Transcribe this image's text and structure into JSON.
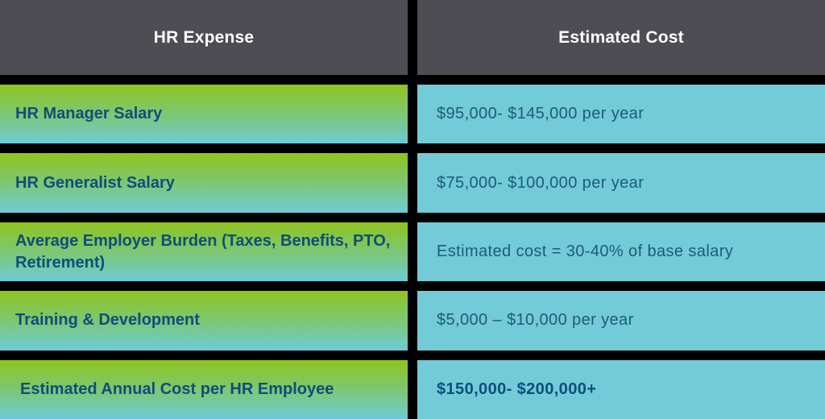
{
  "chart_data": {
    "type": "table",
    "title": "",
    "columns": [
      {
        "label": "HR Expense"
      },
      {
        "label": "Estimated Cost"
      }
    ],
    "rows": [
      {
        "expense": "HR Manager Salary",
        "cost": "$95,000- $145,000 per year",
        "emphasis": false
      },
      {
        "expense": "HR Generalist Salary",
        "cost": "$75,000- $100,000 per year",
        "emphasis": false
      },
      {
        "expense": "Average Employer Burden (Taxes, Benefits, PTO, Retirement)",
        "cost": "Estimated cost = 30-40% of base salary",
        "emphasis": false
      },
      {
        "expense": "Training & Development",
        "cost": "$5,000 – $10,000 per year",
        "emphasis": false
      },
      {
        "expense": "Estimated Annual Cost per HR Employee",
        "cost": "$150,000- $200,000+",
        "emphasis": true
      }
    ],
    "layout": {
      "grid": "black gaps between all cells",
      "header_position": "top",
      "left_column_style": "green-to-cyan vertical gradient",
      "right_column_style": "flat cyan"
    },
    "colors": {
      "header_background": "#4D4D53",
      "header_text": "#FFFFFF",
      "gap_background": "#000000",
      "expense_gradient_top": "#8FC41E",
      "expense_gradient_bottom": "#6ECBD7",
      "cost_background": "#72CBD6",
      "expense_text": "#0D4E7C",
      "cost_text": "#1E5A7B",
      "total_cost_text": "#0D4E7C"
    }
  }
}
